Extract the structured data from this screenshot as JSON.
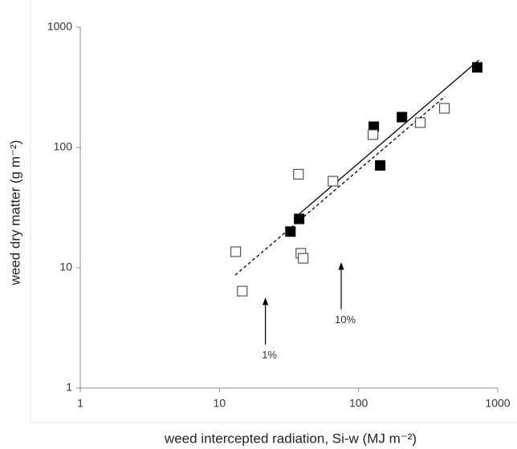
{
  "chart_data": {
    "type": "scatter",
    "x_label": "weed intercepted radiation, Si-w (MJ m⁻²)",
    "y_label": "weed dry matter (g m⁻²)",
    "log_x": true,
    "log_y": true,
    "grid": false,
    "xlim": [
      1,
      1000
    ],
    "ylim": [
      1,
      1000
    ],
    "xticks": [
      1,
      10,
      100,
      1000
    ],
    "yticks": [
      1,
      10,
      100,
      1000
    ],
    "series": [
      {
        "marker": "filled",
        "color": "#000000",
        "x": [
          32.4,
          37.4,
          128.6,
          143,
          205,
          713
        ],
        "values": [
          20,
          25.5,
          149,
          71,
          179,
          464
        ]
      },
      {
        "marker": "open",
        "color": "#333333",
        "x": [
          13.1,
          14.6,
          37,
          38.5,
          40,
          65.5,
          127,
          278,
          414
        ],
        "values": [
          13.6,
          6.4,
          60,
          13.2,
          12,
          52.5,
          128,
          161,
          212
        ]
      }
    ],
    "lines": [
      {
        "style": "solid",
        "color": "#000000",
        "x": [
          34.6,
          732
        ],
        "values": [
          25.9,
          533
        ]
      },
      {
        "style": "dashed",
        "color": "#000000",
        "x": [
          13,
          419
        ],
        "values": [
          8.7,
          267
        ]
      }
    ],
    "annotations": [
      {
        "text": "1%",
        "x": 21.4,
        "y": 5.6
      },
      {
        "text": "10%",
        "x": 75,
        "y": 11
      }
    ]
  }
}
